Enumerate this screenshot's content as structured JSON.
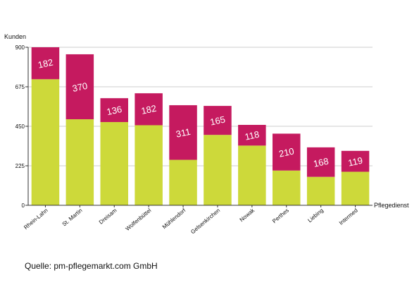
{
  "colors": {
    "base": "#cdd93a",
    "top": "#c51a5f",
    "grid": "#cccccc",
    "axis": "#333333"
  },
  "source": "Quelle: pm-pflegemarkt.com GmbH",
  "chart_data": {
    "type": "bar",
    "stacked": true,
    "ylabel": "Kunden",
    "xlabel": "Pflegedienst",
    "ylim": [
      0,
      900
    ],
    "yticks": [
      0,
      225,
      450,
      675,
      900
    ],
    "grid": true,
    "categories": [
      "Rhein-Lahn",
      "St. Martin",
      "Dreisam",
      "Wolfenbüttel",
      "Mühlendorf",
      "Gelsenkirchen",
      "Nowak",
      "Perthes",
      "Liebing",
      "Intermed"
    ],
    "series": [
      {
        "color": "#cdd93a",
        "values": [
          718,
          490,
          474,
          456,
          259,
          401,
          340,
          198,
          162,
          191
        ]
      },
      {
        "color": "#c51a5f",
        "values": [
          182,
          370,
          136,
          182,
          311,
          165,
          118,
          210,
          168,
          119
        ]
      }
    ],
    "data_labels": [
      "182",
      "370",
      "136",
      "182",
      "311",
      "165",
      "118",
      "210",
      "168",
      "119"
    ]
  }
}
